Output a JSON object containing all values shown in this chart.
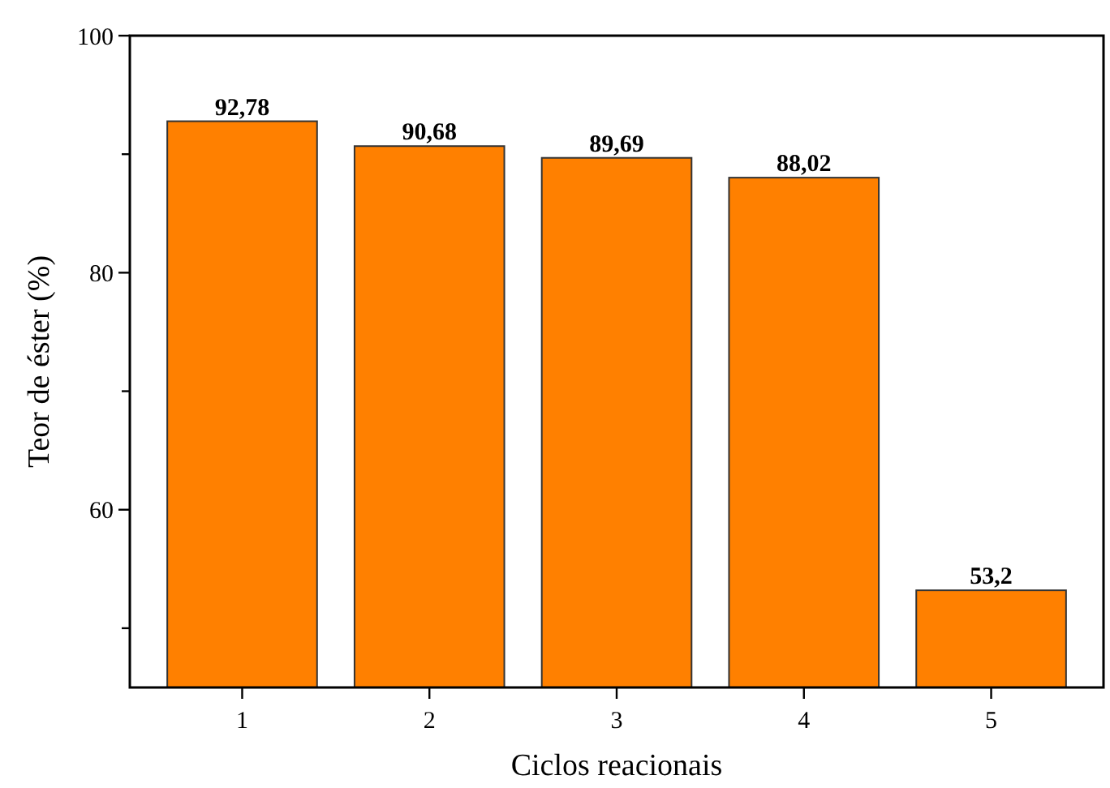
{
  "chart_data": {
    "type": "bar",
    "xlabel": "Ciclos reacionais",
    "ylabel": "Teor de éster (%)",
    "categories": [
      "1",
      "2",
      "3",
      "4",
      "5"
    ],
    "values": [
      92.78,
      90.68,
      89.69,
      88.02,
      53.2
    ],
    "value_labels": [
      "92,78",
      "90,68",
      "89,69",
      "88,02",
      "53,2"
    ],
    "color": "#ff8000",
    "ylim": [
      45,
      100
    ],
    "yticks": [
      {
        "value": 50,
        "label": null
      },
      60,
      {
        "value": 70,
        "label": null
      },
      80,
      {
        "value": 90,
        "label": null
      },
      100
    ],
    "grid": false
  }
}
